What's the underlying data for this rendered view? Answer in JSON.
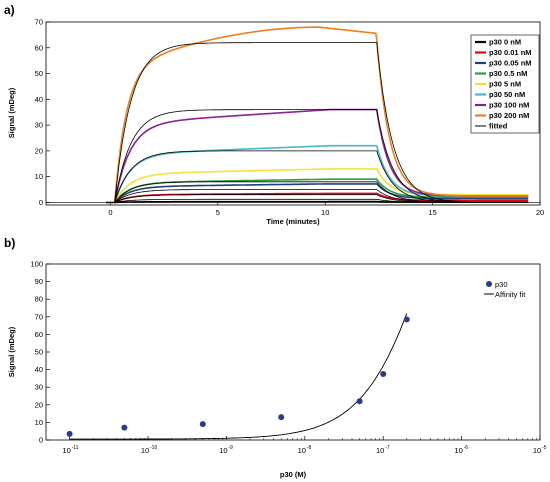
{
  "chart_data": [
    {
      "type": "line",
      "panel_label": "a)",
      "xlabel": "Time (minutes)",
      "ylabel": "Signal (mDeg)",
      "xlim": [
        -3,
        20
      ],
      "ylim": [
        -1,
        70
      ],
      "x_ticks": [
        0,
        5,
        10,
        15,
        20
      ],
      "y_ticks": [
        0,
        10,
        20,
        30,
        40,
        50,
        60,
        70
      ],
      "grid": false,
      "legend_placement": "top-right",
      "colors": {
        "p30_0nM": "#000000",
        "p30_0.01nM": "#e3001b",
        "p30_0.05nM": "#1f3f7a",
        "p30_0.5nM": "#2e9e3f",
        "p30_5nM": "#f5e03b",
        "p30_50nM": "#45b8c9",
        "p30_100nM": "#8b1f8f",
        "p30_200nM": "#ee7d1b",
        "fitted": "#000000"
      },
      "series": [
        {
          "name": "p30 0 nM",
          "color": "#000000",
          "plateau": 0.3,
          "dissoc_end": 0.1,
          "shape": "rise"
        },
        {
          "name": "p30 0.01 nM",
          "color": "#e3001b",
          "plateau": 3.5,
          "dissoc_end": 0.8,
          "shape": "rise"
        },
        {
          "name": "p30 0.05 nM",
          "color": "#1f3f7a",
          "plateau": 7.2,
          "dissoc_end": 1.5,
          "shape": "rise"
        },
        {
          "name": "p30 0.5 nM",
          "color": "#2e9e3f",
          "plateau": 9.0,
          "dissoc_end": 2.0,
          "shape": "rise"
        },
        {
          "name": "p30 5 nM",
          "color": "#f5e03b",
          "plateau": 13.0,
          "dissoc_end": 3.0,
          "shape": "rise"
        },
        {
          "name": "p30 50 nM",
          "color": "#45b8c9",
          "plateau": 22.0,
          "dissoc_end": 2.5,
          "shape": "rise"
        },
        {
          "name": "p30 100 nM",
          "color": "#8b1f8f",
          "plateau": 36.0,
          "dissoc_end": 2.5,
          "shape": "rise"
        },
        {
          "name": "p30 200 nM",
          "color": "#ee7d1b",
          "plateau": 68.0,
          "dissoc_end": 2.5,
          "shape": "arc"
        },
        {
          "name": "fitted",
          "color": "#000000",
          "fits": [
            62.0,
            36.0,
            20.0,
            8.0,
            5.0,
            3.0,
            1.2
          ]
        }
      ],
      "association_start": 0.2,
      "dissociation_start": 12.4,
      "end_time": 19.5
    },
    {
      "type": "scatter",
      "panel_label": "b)",
      "xlabel": "p30 (M)",
      "ylabel": "Signal (mDeg)",
      "x_scale": "log",
      "xlim": [
        5e-12,
        1e-05
      ],
      "ylim": [
        0,
        100
      ],
      "x_tick_base": "10",
      "x_tick_exponents": [
        "-11",
        "-10",
        "-9",
        "-8",
        "-7",
        "-6",
        "-5"
      ],
      "y_ticks": [
        0,
        10,
        20,
        30,
        40,
        50,
        60,
        70,
        80,
        90,
        100
      ],
      "grid": false,
      "legend_placement": "top-right",
      "colors": {
        "points": "#2b3990",
        "fit": "#000000"
      },
      "series": [
        {
          "name": "p30",
          "x": [
            1e-11,
            5e-11,
            5e-10,
            5e-09,
            5e-08,
            1e-07,
            2e-07
          ],
          "y": [
            3.5,
            7.0,
            9.0,
            13.0,
            22.0,
            37.5,
            68.5
          ]
        },
        {
          "name": "Affinity fit",
          "kd": 5e-07,
          "bmax": 250,
          "offset": 0.5,
          "x_range": [
            1e-11,
            2e-07
          ]
        }
      ]
    }
  ]
}
